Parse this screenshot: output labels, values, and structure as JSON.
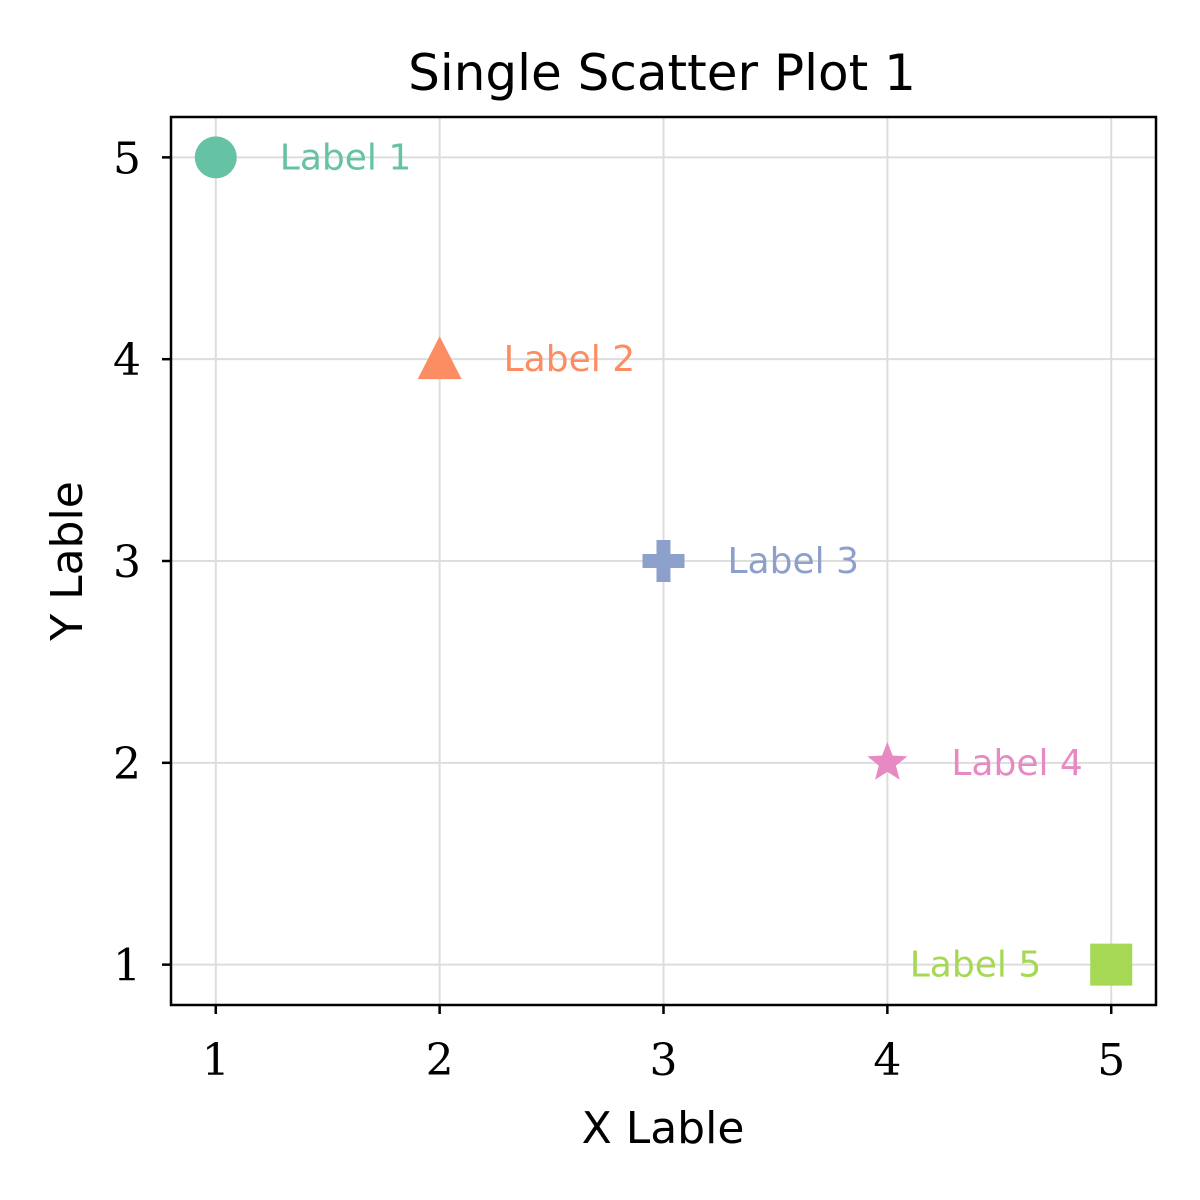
{
  "chart_data": {
    "type": "scatter",
    "title": "Single Scatter Plot 1",
    "xlabel": "X Lable",
    "ylabel": "Y Lable",
    "xlim": [
      0.8,
      5.2
    ],
    "ylim": [
      0.8,
      5.2
    ],
    "xticks": [
      1,
      2,
      3,
      4,
      5
    ],
    "yticks": [
      1,
      2,
      3,
      4,
      5
    ],
    "grid": true,
    "points": [
      {
        "x": 1,
        "y": 5,
        "label": "Label 1",
        "marker": "circle",
        "color": "#66c2a5"
      },
      {
        "x": 2,
        "y": 4,
        "label": "Label 2",
        "marker": "triangle",
        "color": "#fc8d62"
      },
      {
        "x": 3,
        "y": 3,
        "label": "Label 3",
        "marker": "plus",
        "color": "#8da0cb"
      },
      {
        "x": 4,
        "y": 2,
        "label": "Label 4",
        "marker": "star",
        "color": "#e78ac3"
      },
      {
        "x": 5,
        "y": 1,
        "label": "Label 5",
        "marker": "square",
        "color": "#a6d854"
      }
    ]
  }
}
